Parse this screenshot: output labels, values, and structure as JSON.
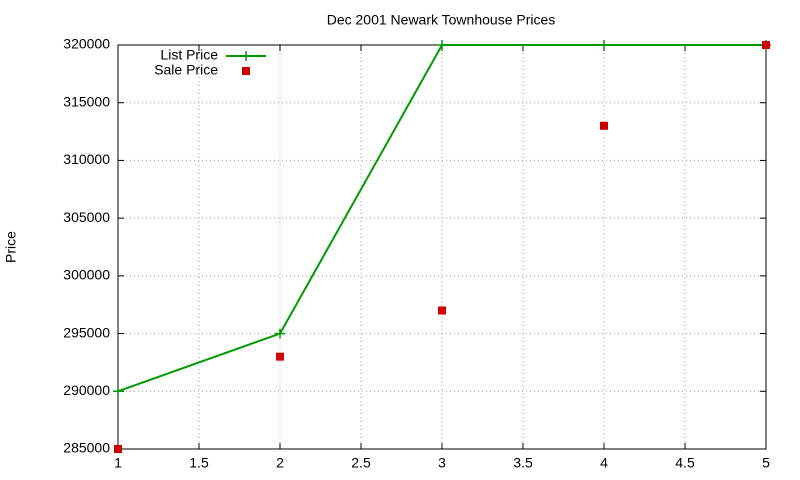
{
  "chart_data": {
    "type": "line",
    "title": "Dec 2001 Newark Townhouse Prices",
    "ylabel": "Price",
    "x": [
      1,
      2,
      3,
      4,
      5
    ],
    "series": [
      {
        "name": "List Price",
        "color": "#009900",
        "style": "linespoints",
        "values": [
          290000,
          295000,
          320000,
          320000,
          320000
        ]
      },
      {
        "name": "Sale Price",
        "color": "#cc0000",
        "style": "points",
        "values": [
          285000,
          293000,
          297000,
          313000,
          320000
        ]
      }
    ],
    "xlim": [
      1,
      5
    ],
    "xticks": [
      1,
      1.5,
      2,
      2.5,
      3,
      3.5,
      4,
      4.5,
      5
    ],
    "ylim": [
      285000,
      320000
    ],
    "yticks": [
      285000,
      290000,
      295000,
      300000,
      305000,
      310000,
      315000,
      320000
    ],
    "grid": true,
    "legend": "top left"
  }
}
